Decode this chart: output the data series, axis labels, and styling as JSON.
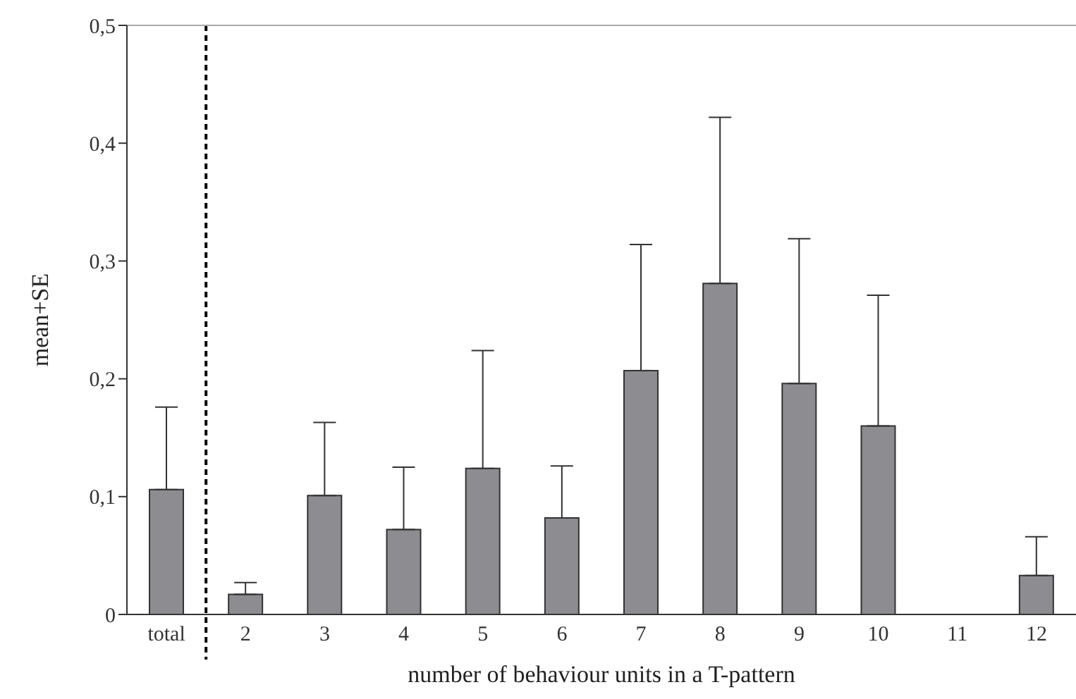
{
  "chart_data": {
    "type": "bar",
    "xlabel": "number of behaviour units in a T-pattern",
    "ylabel": "mean+SE",
    "categories": [
      "total",
      "2",
      "3",
      "4",
      "5",
      "6",
      "7",
      "8",
      "9",
      "10",
      "11",
      "12"
    ],
    "values": [
      0.106,
      0.017,
      0.101,
      0.072,
      0.124,
      0.082,
      0.207,
      0.281,
      0.196,
      0.16,
      0,
      0.033
    ],
    "errors": [
      [
        0.106,
        0.176
      ],
      [
        0.017,
        0.027
      ],
      [
        0.101,
        0.163
      ],
      [
        0.072,
        0.125
      ],
      [
        0.124,
        0.224
      ],
      [
        0.082,
        0.126
      ],
      [
        0.207,
        0.314
      ],
      [
        0.281,
        0.422
      ],
      [
        0.196,
        0.319
      ],
      [
        0.16,
        0.271
      ],
      null,
      [
        0.033,
        0.066
      ]
    ],
    "color": "#8c8c91",
    "ylim": [
      0,
      0.5
    ],
    "yticks": [
      {
        "value": 0,
        "label": "0"
      },
      {
        "value": 0.1,
        "label": "0,1"
      },
      {
        "value": 0.2,
        "label": "0,2"
      },
      {
        "value": 0.3,
        "label": "0,3"
      },
      {
        "value": 0.4,
        "label": "0,4"
      },
      {
        "value": 0.5,
        "label": "0,5"
      }
    ],
    "grid": false,
    "legend": false
  }
}
